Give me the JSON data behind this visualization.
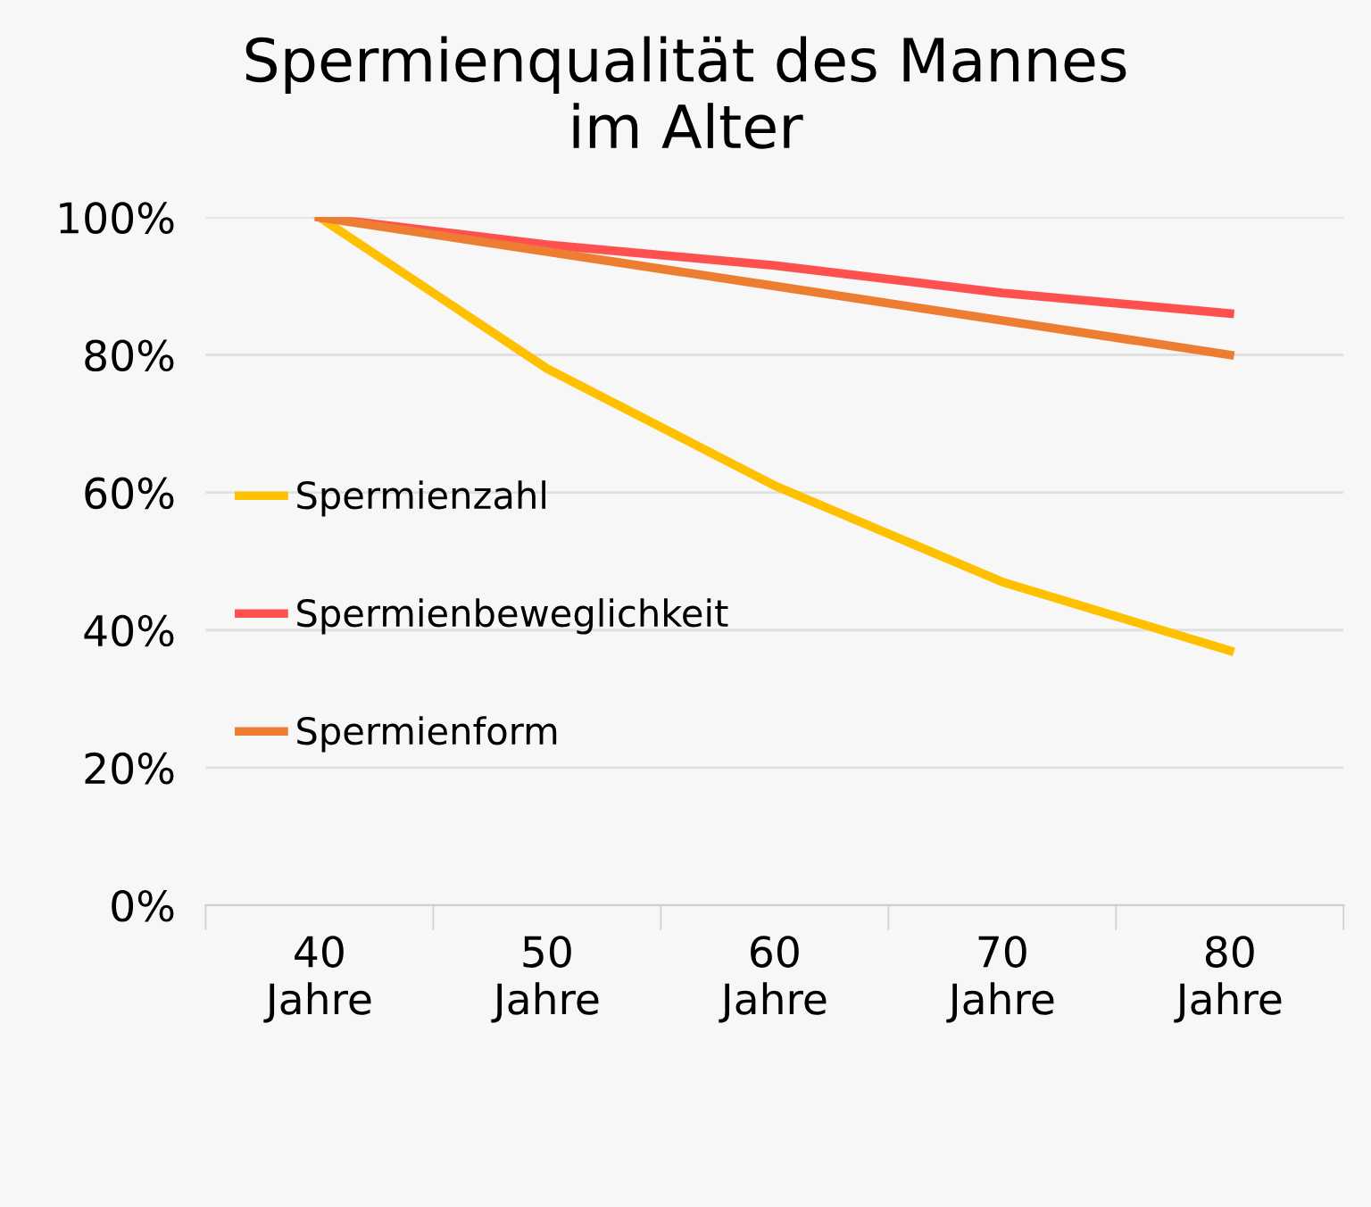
{
  "chart_data": {
    "type": "line",
    "title": "Spermienqualität des Mannes\nim Alter",
    "categories": [
      "40\nJahre",
      "50\nJahre",
      "60\nJahre",
      "70\nJahre",
      "80\nJahre"
    ],
    "series": [
      {
        "name": "Spermienzahl",
        "color": "#ffc000",
        "values": [
          100,
          78,
          61,
          47,
          37
        ]
      },
      {
        "name": "Spermienbeweglichkeit",
        "color": "#ff5050",
        "values": [
          100,
          96,
          93,
          89,
          86
        ]
      },
      {
        "name": "Spermienform",
        "color": "#ed7d31",
        "values": [
          100,
          95,
          90,
          85,
          80
        ]
      }
    ],
    "ylim": [
      0,
      100
    ],
    "yticks": [
      {
        "value": 0,
        "label": "0%"
      },
      {
        "value": 20,
        "label": "20%"
      },
      {
        "value": 40,
        "label": "40%"
      },
      {
        "value": 60,
        "label": "60%"
      },
      {
        "value": 80,
        "label": "80%"
      },
      {
        "value": 100,
        "label": "100%"
      }
    ],
    "grid": "y",
    "legend": "left",
    "marker": "none",
    "line_style": "solid"
  }
}
